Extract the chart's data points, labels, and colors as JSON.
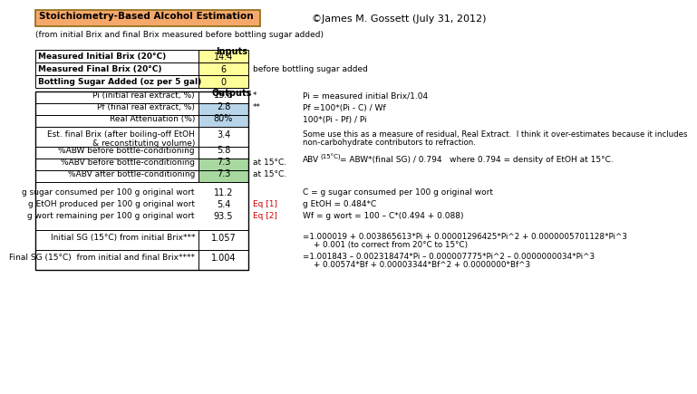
{
  "title": "Stoichiometry-Based Alcohol Estimation",
  "subtitle": "(from initial Brix and final Brix measured before bottling sugar added)",
  "copyright": "©James M. Gossett (July 31, 2012)",
  "inputs": [
    {
      "label": "Measured Initial Brix (20°C)",
      "value": "14.4"
    },
    {
      "label": "Measured Final Brix (20°C)",
      "value": "6"
    },
    {
      "label": "Bottling Sugar Added (oz per 5 gal)",
      "value": "0"
    }
  ],
  "outputs": [
    {
      "label": "Pi (initial real extract, %)",
      "value": "13.8",
      "note": "*",
      "hl": false,
      "color": "white"
    },
    {
      "label": "Pf (final real extract, %)",
      "value": "2.8",
      "note": "**",
      "hl": true,
      "color": "#b8d4e8"
    },
    {
      "label": "Real Attenuation (%)",
      "value": "80%",
      "note": "",
      "hl": true,
      "color": "#b8d4e8"
    },
    {
      "label": "Est. final Brix (after boiling-off EtOH\n& reconstituting volume)",
      "value": "3.4",
      "note": "",
      "hl": false,
      "color": "white"
    },
    {
      "label": "%ABW before bottle-conditioning",
      "value": "5.8",
      "note": "",
      "hl": false,
      "color": "white"
    },
    {
      "label": "%ABV before bottle-conditioning",
      "value": "7.3",
      "note": "at 15°C.",
      "hl": true,
      "color": "#a8d8a0"
    },
    {
      "label": "%ABV after bottle-conditioning",
      "value": "7.3",
      "note": "at 15°C.",
      "hl": true,
      "color": "#a8d8a0"
    }
  ],
  "sugar_rows": [
    {
      "label": "g sugar consumed per 100 g original wort",
      "value": "11.2",
      "eq": "",
      "eq_color": "black"
    },
    {
      "label": "g EtOH produced per 100 g original wort",
      "value": "5.4",
      "eq": "Eq [1]",
      "eq_color": "#cc0000"
    },
    {
      "label": "g wort remaining per 100 g original wort",
      "value": "93.5",
      "eq": "Eq [2]",
      "eq_color": "#cc0000"
    }
  ],
  "sg_rows": [
    {
      "label": "Initial SG (15°C) from initial Brix***",
      "value": "1.057"
    },
    {
      "label": "Final SG (15°C)  from initial and final Brix****",
      "value": "1.004"
    }
  ],
  "header_bg": "#f5a86a",
  "input_val_bg": "#ffff99",
  "border_color": "#8B6914"
}
